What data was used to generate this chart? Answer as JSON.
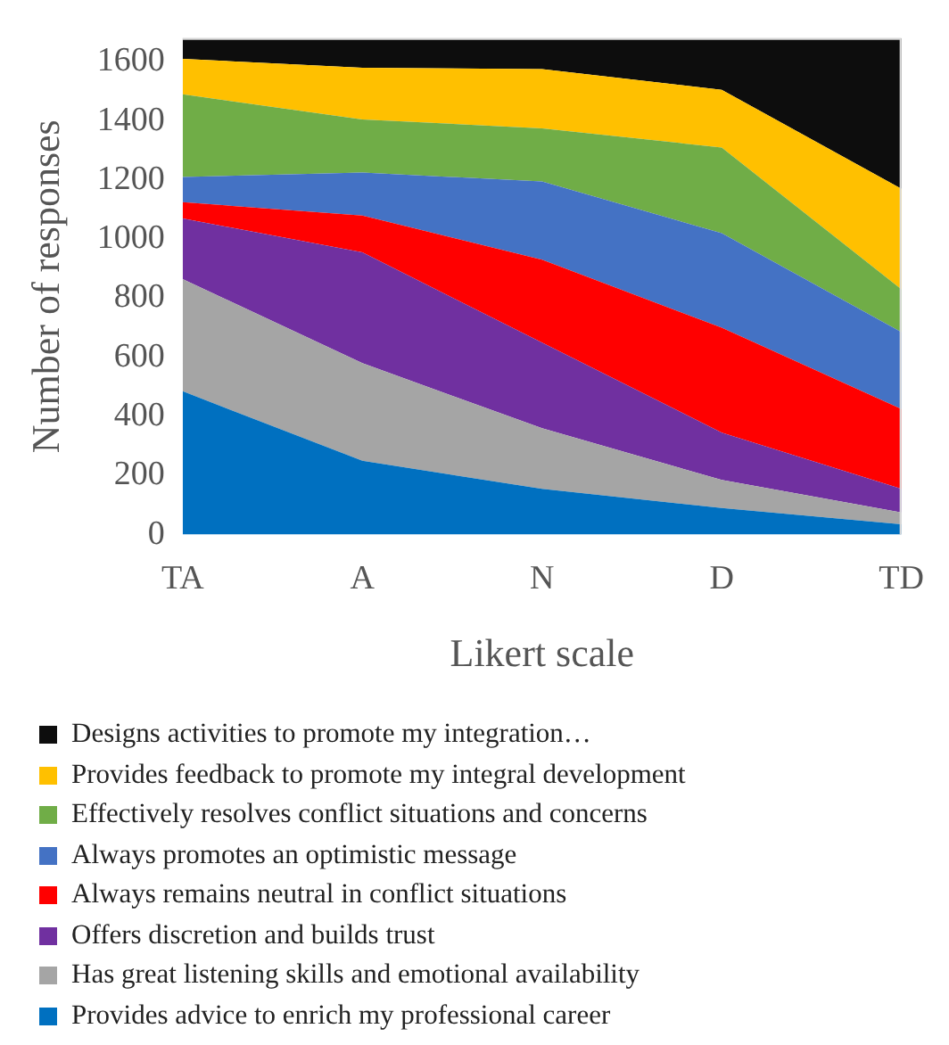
{
  "chart_data": {
    "type": "area",
    "stacked": true,
    "xlabel": "Likert scale",
    "ylabel": "Number of responses",
    "categories": [
      "TA",
      "A",
      "N",
      "D",
      "TD"
    ],
    "ylim": [
      0,
      1680
    ],
    "yticks": [
      0,
      200,
      400,
      600,
      800,
      1000,
      1200,
      1400,
      1600
    ],
    "grid": false,
    "legend": "bottom",
    "series": [
      {
        "name": "Provides advice to enrich my professional career",
        "color": "#0070c0",
        "values": [
          485,
          250,
          155,
          90,
          35
        ]
      },
      {
        "name": "Has great listening skills and emotional availability",
        "color": "#a5a5a5",
        "values": [
          380,
          330,
          205,
          95,
          40
        ]
      },
      {
        "name": "Offers discretion and builds trust",
        "color": "#7030a0",
        "values": [
          205,
          375,
          290,
          160,
          80
        ]
      },
      {
        "name": "Always remains neutral in conflict situations",
        "color": "#ff0000",
        "values": [
          55,
          125,
          280,
          355,
          270
        ]
      },
      {
        "name": "Always promotes an optimistic message",
        "color": "#4472c4",
        "values": [
          85,
          145,
          265,
          320,
          260
        ]
      },
      {
        "name": "Effectively resolves conflict situations and concerns",
        "color": "#70ad47",
        "values": [
          280,
          180,
          180,
          290,
          145
        ]
      },
      {
        "name": "Provides feedback to promote my integral development",
        "color": "#ffc000",
        "values": [
          120,
          175,
          200,
          195,
          340
        ]
      },
      {
        "name": "Designs activities to promote my integration…",
        "color": "#0d0d0d",
        "values": [
          70,
          100,
          105,
          175,
          510
        ]
      }
    ]
  }
}
